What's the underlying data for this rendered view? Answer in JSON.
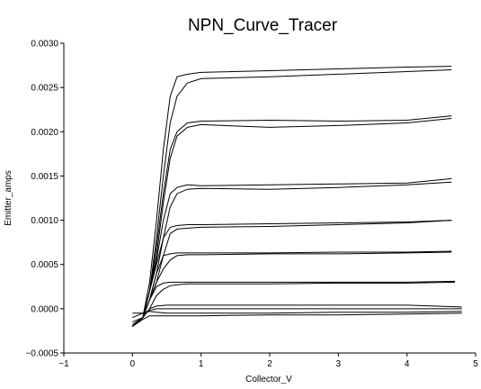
{
  "chart_data": {
    "type": "line",
    "title": "NPN_Curve_Tracer",
    "xlabel": "Collector_V",
    "ylabel": "Emitter_amps",
    "xlim": [
      -1,
      5
    ],
    "ylim": [
      -0.0005,
      0.003
    ],
    "xticks": [
      "−1",
      "0",
      "1",
      "2",
      "3",
      "4",
      "5"
    ],
    "yticks": [
      "−0.0005",
      "0.0000",
      "0.0005",
      "0.0010",
      "0.0015",
      "0.0020",
      "0.0025",
      "0.0030"
    ],
    "grid": false,
    "legend": "none",
    "series": [
      {
        "x": [
          0.0,
          0.15,
          0.25,
          0.35,
          0.45,
          0.55,
          0.65,
          0.8,
          1.0,
          2.0,
          3.0,
          4.0,
          4.65
        ],
        "y": [
          -0.0002,
          -0.0001,
          0.0003,
          0.001,
          0.0018,
          0.0024,
          0.00262,
          0.00265,
          0.00267,
          0.00269,
          0.00271,
          0.00273,
          0.00274
        ]
      },
      {
        "x": [
          0.0,
          0.15,
          0.25,
          0.35,
          0.45,
          0.55,
          0.65,
          0.8,
          1.0,
          2.0,
          3.0,
          4.0,
          4.65
        ],
        "y": [
          -0.00018,
          -0.0001,
          0.0002,
          0.0008,
          0.0015,
          0.0021,
          0.0024,
          0.00255,
          0.0026,
          0.00262,
          0.00265,
          0.00268,
          0.0027
        ]
      },
      {
        "x": [
          0.0,
          0.15,
          0.25,
          0.35,
          0.45,
          0.55,
          0.65,
          0.8,
          1.0,
          2.0,
          3.0,
          4.0,
          4.65
        ],
        "y": [
          -0.0002,
          -0.0001,
          0.0002,
          0.0007,
          0.0013,
          0.0018,
          0.002,
          0.0021,
          0.00212,
          0.00213,
          0.00212,
          0.00213,
          0.00218
        ]
      },
      {
        "x": [
          0.0,
          0.15,
          0.25,
          0.35,
          0.45,
          0.55,
          0.65,
          0.8,
          1.0,
          2.0,
          3.0,
          4.0,
          4.65
        ],
        "y": [
          -0.0002,
          -0.0001,
          0.0002,
          0.0006,
          0.0012,
          0.0017,
          0.00195,
          0.00205,
          0.00208,
          0.00205,
          0.00207,
          0.0021,
          0.00215
        ]
      },
      {
        "x": [
          0.0,
          0.15,
          0.25,
          0.35,
          0.45,
          0.55,
          0.65,
          0.8,
          1.0,
          2.0,
          3.0,
          4.0,
          4.65
        ],
        "y": [
          -0.0002,
          -0.0001,
          0.0002,
          0.00055,
          0.001,
          0.0013,
          0.00137,
          0.0014,
          0.00139,
          0.0014,
          0.00141,
          0.00142,
          0.00147
        ]
      },
      {
        "x": [
          0.0,
          0.15,
          0.25,
          0.35,
          0.45,
          0.55,
          0.65,
          0.8,
          1.0,
          2.0,
          3.0,
          4.0,
          4.65
        ],
        "y": [
          -0.0002,
          -0.0001,
          0.0001,
          0.0004,
          0.0008,
          0.00115,
          0.0013,
          0.00135,
          0.00136,
          0.00135,
          0.00137,
          0.0014,
          0.00143
        ]
      },
      {
        "x": [
          0.0,
          0.15,
          0.25,
          0.35,
          0.45,
          0.55,
          0.65,
          0.8,
          1.0,
          2.0,
          3.0,
          4.0,
          4.65
        ],
        "y": [
          -0.0002,
          -0.0001,
          0.0002,
          0.0005,
          0.0008,
          0.00092,
          0.00094,
          0.00095,
          0.00095,
          0.00096,
          0.00097,
          0.00098,
          0.001
        ]
      },
      {
        "x": [
          0.0,
          0.15,
          0.25,
          0.35,
          0.45,
          0.55,
          0.65,
          0.8,
          1.0,
          2.0,
          3.0,
          4.0,
          4.65
        ],
        "y": [
          -0.0002,
          -0.0001,
          0.0001,
          0.0003,
          0.0006,
          0.00085,
          0.0009,
          0.00091,
          0.00092,
          0.00093,
          0.00095,
          0.00097,
          0.001
        ]
      },
      {
        "x": [
          0.0,
          0.15,
          0.25,
          0.35,
          0.45,
          0.55,
          0.65,
          0.8,
          1.0,
          2.0,
          3.0,
          4.0,
          4.65
        ],
        "y": [
          -0.0002,
          -0.0001,
          0.0001,
          0.0004,
          0.0006,
          0.00062,
          0.00063,
          0.00063,
          0.00063,
          0.00063,
          0.00064,
          0.00064,
          0.00065
        ]
      },
      {
        "x": [
          0.0,
          0.15,
          0.25,
          0.35,
          0.45,
          0.55,
          0.65,
          0.8,
          1.0,
          2.0,
          3.0,
          4.0,
          4.65
        ],
        "y": [
          -0.0002,
          -0.0001,
          0.0001,
          0.0003,
          0.00045,
          0.00055,
          0.0006,
          0.00061,
          0.00061,
          0.00062,
          0.00062,
          0.00063,
          0.00064
        ]
      },
      {
        "x": [
          0.0,
          0.15,
          0.25,
          0.35,
          0.45,
          0.55,
          0.65,
          0.8,
          1.0,
          2.0,
          3.0,
          4.0,
          4.7
        ],
        "y": [
          -0.0002,
          -0.0001,
          0.0001,
          0.00025,
          0.00029,
          0.0003,
          0.0003,
          0.0003,
          0.0003,
          0.0003,
          0.0003,
          0.0003,
          0.00031
        ]
      },
      {
        "x": [
          0.0,
          0.15,
          0.25,
          0.35,
          0.45,
          0.55,
          0.65,
          0.8,
          1.0,
          2.0,
          3.0,
          4.0,
          4.7
        ],
        "y": [
          -0.0002,
          -0.0001,
          0.0,
          0.00015,
          0.00022,
          0.00026,
          0.00027,
          0.00028,
          0.00028,
          0.00028,
          0.00029,
          0.00029,
          0.0003
        ]
      },
      {
        "x": [
          0.0,
          0.15,
          0.25,
          0.35,
          0.5,
          0.8,
          1.0,
          2.0,
          3.0,
          4.0,
          4.8
        ],
        "y": [
          -0.00015,
          -0.0001,
          0.0,
          3e-05,
          4e-05,
          4e-05,
          4e-05,
          4e-05,
          4e-05,
          4e-05,
          2e-05
        ]
      },
      {
        "x": [
          0.0,
          0.15,
          0.25,
          0.35,
          0.5,
          0.8,
          1.0,
          2.0,
          3.0,
          4.0,
          4.8
        ],
        "y": [
          -0.0001,
          -5e-05,
          -2e-05,
          0.0,
          0.0,
          0.0,
          0.0,
          0.0,
          0.0,
          0.0,
          0.0
        ]
      },
      {
        "x": [
          0.0,
          0.15,
          0.25,
          0.35,
          0.5,
          0.8,
          1.0,
          2.0,
          3.0,
          4.0,
          4.8
        ],
        "y": [
          -5e-05,
          -5e-05,
          -3e-05,
          -4e-05,
          -5e-05,
          -5e-05,
          -5e-05,
          -5e-05,
          -4e-05,
          -4e-05,
          -3e-05
        ]
      },
      {
        "x": [
          0.0,
          0.15,
          0.25,
          0.35,
          0.5,
          0.8,
          1.0,
          2.0,
          3.0,
          4.0,
          4.8
        ],
        "y": [
          -0.0002,
          -0.00012,
          -8e-05,
          -8e-05,
          -8e-05,
          -8e-05,
          -8e-05,
          -7e-05,
          -7e-05,
          -6e-05,
          -5e-05
        ]
      }
    ]
  }
}
